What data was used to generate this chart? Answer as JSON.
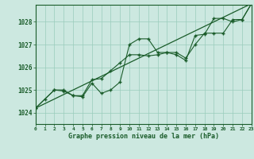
{
  "title": "Graphe pression niveau de la mer (hPa)",
  "bg_color": "#cce8e0",
  "grid_color": "#99ccbb",
  "line_color": "#1a5c2a",
  "x_min": 0,
  "x_max": 23,
  "y_min": 1023.5,
  "y_max": 1028.75,
  "yticks": [
    1024,
    1025,
    1026,
    1027,
    1028
  ],
  "xticks": [
    0,
    1,
    2,
    3,
    4,
    5,
    6,
    7,
    8,
    9,
    10,
    11,
    12,
    13,
    14,
    15,
    16,
    17,
    18,
    19,
    20,
    21,
    22,
    23
  ],
  "series1_x": [
    0,
    1,
    2,
    3,
    4,
    5,
    6,
    7,
    8,
    9,
    10,
    11,
    12,
    13,
    14,
    15,
    16,
    17,
    18,
    19,
    20,
    21,
    22,
    23
  ],
  "series1_y": [
    1024.2,
    1024.6,
    1025.0,
    1024.95,
    1024.75,
    1024.7,
    1025.3,
    1024.85,
    1025.0,
    1025.35,
    1027.0,
    1027.25,
    1027.25,
    1026.65,
    1026.65,
    1026.55,
    1026.3,
    1027.4,
    1027.45,
    1028.15,
    1028.15,
    1028.0,
    1028.1,
    1028.8
  ],
  "series2_x": [
    0,
    2,
    3,
    4,
    5,
    6,
    7,
    8,
    9,
    10,
    11,
    12,
    13,
    14,
    15,
    16,
    17,
    18,
    19,
    20,
    21,
    22,
    23
  ],
  "series2_y": [
    1024.2,
    1025.0,
    1025.0,
    1024.75,
    1024.75,
    1025.45,
    1025.5,
    1025.85,
    1026.2,
    1026.55,
    1026.55,
    1026.5,
    1026.55,
    1026.65,
    1026.65,
    1026.4,
    1027.0,
    1027.5,
    1027.5,
    1027.5,
    1028.1,
    1028.1,
    1028.8
  ],
  "trend_x": [
    0,
    23
  ],
  "trend_y": [
    1024.2,
    1028.8
  ]
}
